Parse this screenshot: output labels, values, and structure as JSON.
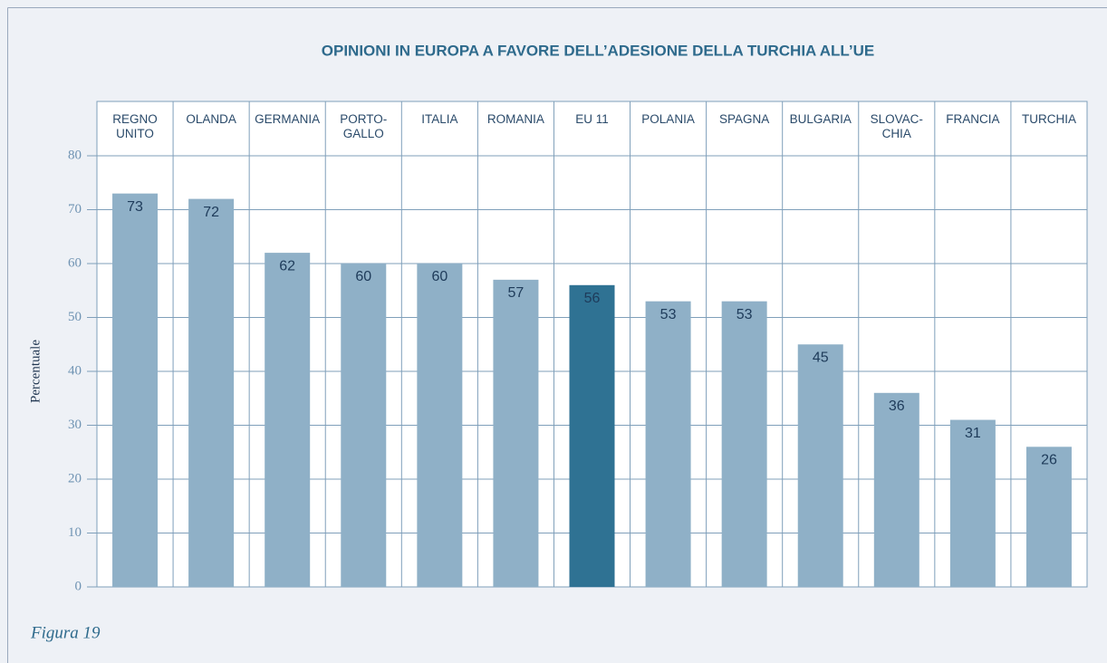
{
  "chart_data": {
    "type": "bar",
    "title": "OPINIONI IN EUROPA A FAVORE DELL’ADESIONE DELLA TURCHIA ALL’UE",
    "ylabel": "Percentuale",
    "caption": "Figura 19",
    "categories": [
      "REGNO\nUNITO",
      "OLANDA",
      "GERMANIA",
      "PORTO-\nGALLO",
      "ITALIA",
      "ROMANIA",
      "EU 11",
      "POLANIA",
      "SPAGNA",
      "BULGARIA",
      "SLOVAC-\nCHIA",
      "FRANCIA",
      "TURCHIA"
    ],
    "values": [
      73,
      72,
      62,
      60,
      60,
      57,
      56,
      53,
      53,
      45,
      36,
      31,
      26
    ],
    "colors": [
      "#8fb0c7",
      "#8fb0c7",
      "#8fb0c7",
      "#8fb0c7",
      "#8fb0c7",
      "#8fb0c7",
      "#2f7293",
      "#8fb0c7",
      "#8fb0c7",
      "#8fb0c7",
      "#8fb0c7",
      "#8fb0c7",
      "#8fb0c7"
    ],
    "ylim": [
      0,
      80
    ],
    "yticks": [
      0,
      10,
      20,
      30,
      40,
      50,
      60,
      70,
      80
    ],
    "grid": true
  }
}
